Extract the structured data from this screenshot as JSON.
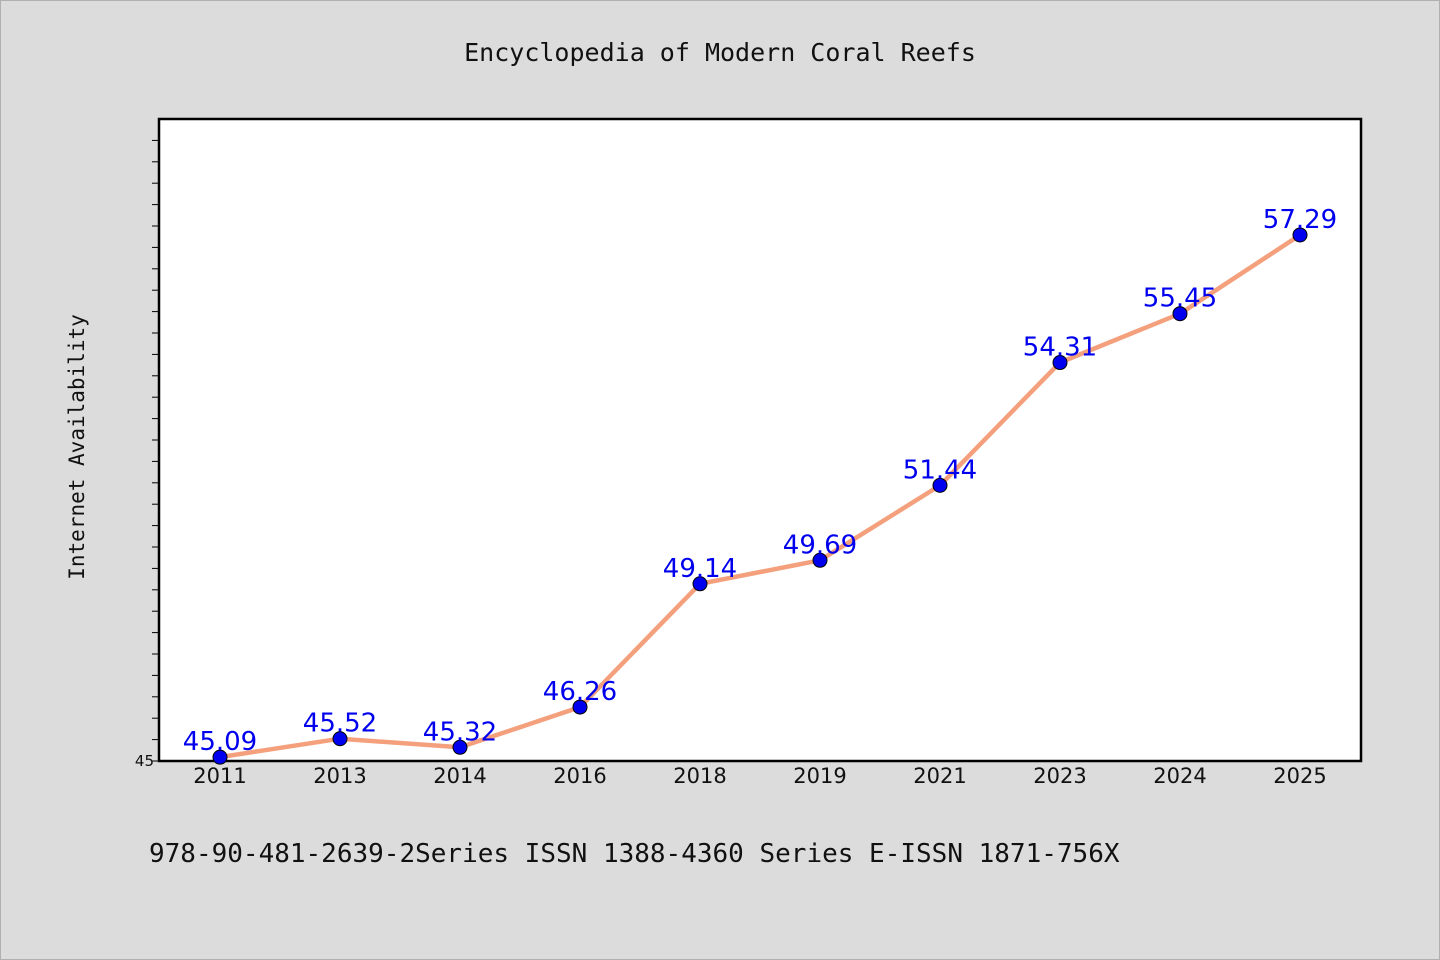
{
  "chart_data": {
    "type": "line",
    "title": "Encyclopedia of Modern Coral Reefs",
    "xlabel": "",
    "ylabel": "Internet Availability",
    "footer": "978-90-481-2639-2Series ISSN 1388-4360 Series E-ISSN 1871-756X",
    "categories": [
      "2011",
      "2013",
      "2014",
      "2016",
      "2018",
      "2019",
      "2021",
      "2023",
      "2024",
      "2025"
    ],
    "values": [
      45.09,
      45.52,
      45.32,
      46.26,
      49.14,
      49.69,
      51.44,
      54.31,
      55.45,
      57.29
    ],
    "value_labels": [
      "45.09",
      "45.52",
      "45.32",
      "46.26",
      "49.14",
      "49.69",
      "51.44",
      "54.31",
      "55.45",
      "57.29"
    ],
    "ylim": [
      45,
      60
    ],
    "y_tick_labels": [
      "45"
    ],
    "grid": false,
    "legend": "none",
    "colors": {
      "line": "#f4a07c",
      "marker": "#0000ee",
      "data_label": "#0000ee",
      "background": "#dcdcdc",
      "plot_background": "#ffffff"
    }
  }
}
